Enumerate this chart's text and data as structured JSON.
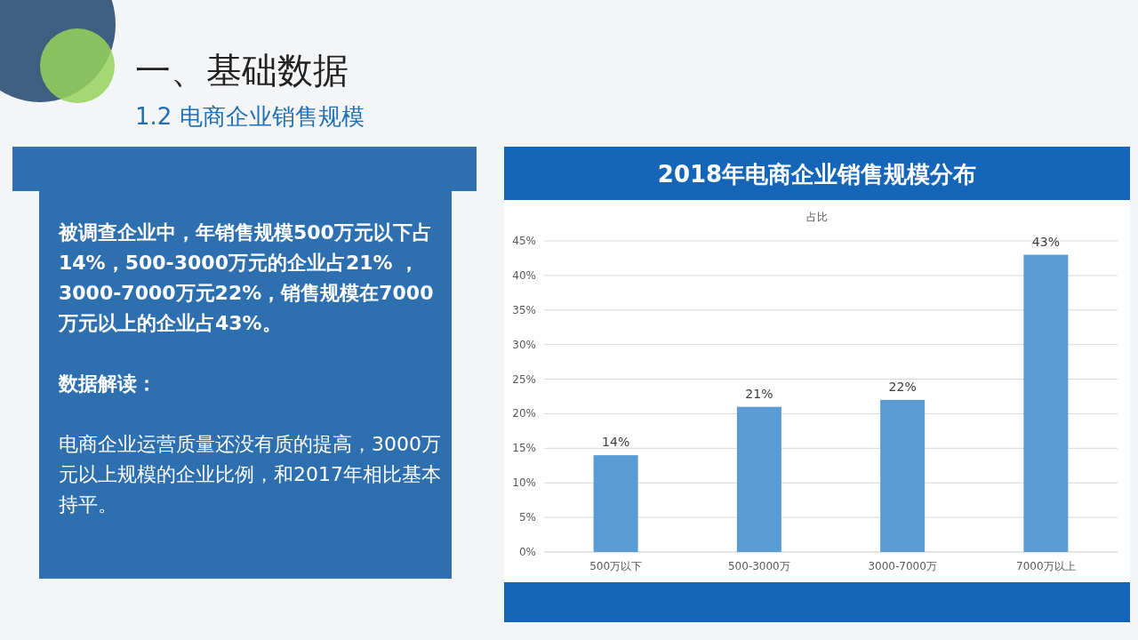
{
  "chart_data": {
    "type": "bar",
    "title": "2018年电商企业销售规模分布",
    "subtitle": "占比",
    "categories": [
      "500万以下",
      "500-3000万",
      "3000-7000万",
      "7000万以上"
    ],
    "values": [
      14,
      21,
      22,
      43
    ],
    "color": "#5b9bd5",
    "value_labels": [
      "14%",
      "21%",
      "22%",
      "43%"
    ],
    "ylim": [
      0,
      45
    ],
    "yticks": [
      {
        "value": 0,
        "label": "0%"
      },
      {
        "value": 5,
        "label": "5%"
      },
      {
        "value": 10,
        "label": "10%"
      },
      {
        "value": 15,
        "label": "15%"
      },
      {
        "value": 20,
        "label": "20%"
      },
      {
        "value": 25,
        "label": "25%"
      },
      {
        "value": 30,
        "label": "30%"
      },
      {
        "value": 35,
        "label": "35%"
      },
      {
        "value": 40,
        "label": "40%"
      },
      {
        "value": 45,
        "label": "45%"
      }
    ],
    "grid": "y",
    "annotations": [
      "一、基础数据",
      "1.2 电商企业销售规模",
      "被调查企业中，年销售规模500万元以下占14%，500-3000万元的企业占21% ，3000-7000万元22%，销售规模在7000万元以上的企业占43%。",
      "数据解读：",
      "电商企业运营质量还没有质的提高，3000万元以上规模的企业比例，和2017年相比基本持平。"
    ]
  }
}
